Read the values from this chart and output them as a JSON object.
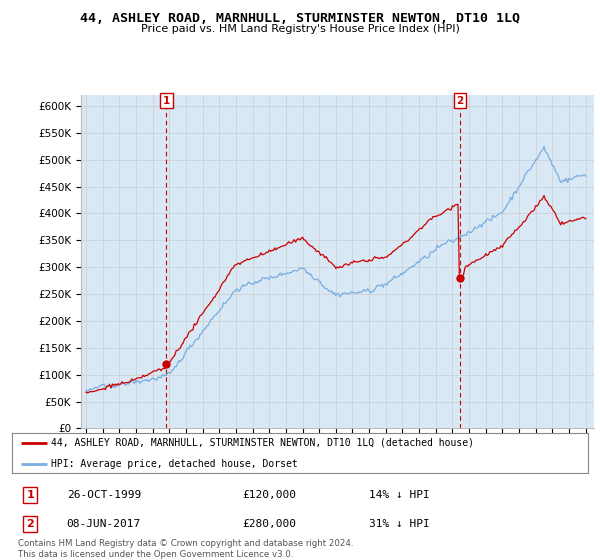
{
  "title": "44, ASHLEY ROAD, MARNHULL, STURMINSTER NEWTON, DT10 1LQ",
  "subtitle": "Price paid vs. HM Land Registry's House Price Index (HPI)",
  "legend_label_red": "44, ASHLEY ROAD, MARNHULL, STURMINSTER NEWTON, DT10 1LQ (detached house)",
  "legend_label_blue": "HPI: Average price, detached house, Dorset",
  "annotation1_date": "26-OCT-1999",
  "annotation1_price": "£120,000",
  "annotation1_hpi": "14% ↓ HPI",
  "annotation2_date": "08-JUN-2017",
  "annotation2_price": "£280,000",
  "annotation2_hpi": "31% ↓ HPI",
  "footnote": "Contains HM Land Registry data © Crown copyright and database right 2024.\nThis data is licensed under the Open Government Licence v3.0.",
  "ylim": [
    0,
    620000
  ],
  "yticks": [
    0,
    50000,
    100000,
    150000,
    200000,
    250000,
    300000,
    350000,
    400000,
    450000,
    500000,
    550000,
    600000
  ],
  "color_red": "#cc0000",
  "color_blue": "#7aade0",
  "color_fill": "#d8e8f5",
  "color_grid": "#cccccc",
  "background_color": "#ffffff",
  "purchase1_year": 1999.82,
  "purchase1_value": 120000,
  "purchase2_year": 2017.44,
  "purchase2_value": 280000
}
